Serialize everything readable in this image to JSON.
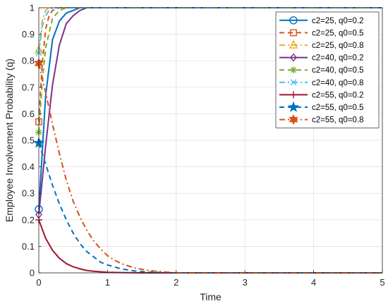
{
  "chart_data": {
    "type": "line",
    "title": "",
    "xlabel": "Time",
    "ylabel": "Employee Involvement Probability (q)",
    "xlim": [
      0,
      5
    ],
    "ylim": [
      0,
      1
    ],
    "xticks": [
      0,
      1,
      2,
      3,
      4,
      5
    ],
    "yticks": [
      0,
      0.1,
      0.2,
      0.3,
      0.4,
      0.5,
      0.6,
      0.7,
      0.8,
      0.9,
      1
    ],
    "grid": true,
    "legend_position": "top-right",
    "series": [
      {
        "name": "c2=25, q0=0.2",
        "color": "#0072BD",
        "dash": "solid",
        "marker": "circle",
        "x": [
          0,
          0.1,
          0.2,
          0.3,
          0.4,
          0.5,
          0.6,
          0.7,
          0.8,
          5
        ],
        "y": [
          0.24,
          0.67,
          0.88,
          0.95,
          0.98,
          0.99,
          1.0,
          1.0,
          1.0,
          1.0
        ]
      },
      {
        "name": "c2=25, q0=0.5",
        "color": "#D95319",
        "dash": "dashed",
        "marker": "square",
        "x": [
          0,
          0.05,
          0.1,
          0.15,
          0.2,
          0.3,
          0.4,
          5
        ],
        "y": [
          0.57,
          0.79,
          0.92,
          0.97,
          0.99,
          1.0,
          1.0,
          1.0
        ]
      },
      {
        "name": "c2=25, q0=0.8",
        "color": "#EDB120",
        "dash": "dashdot",
        "marker": "triangle",
        "x": [
          0,
          0.05,
          0.1,
          0.15,
          0.2,
          0.3,
          5
        ],
        "y": [
          0.84,
          0.95,
          0.99,
          1.0,
          1.0,
          1.0,
          1.0
        ]
      },
      {
        "name": "c2=40, q0=0.2",
        "color": "#7E2F8E",
        "dash": "solid",
        "marker": "diamond",
        "x": [
          0,
          0.1,
          0.2,
          0.3,
          0.4,
          0.5,
          0.6,
          0.7,
          0.8,
          0.9,
          1.0,
          5
        ],
        "y": [
          0.22,
          0.48,
          0.71,
          0.86,
          0.94,
          0.97,
          0.99,
          1.0,
          1.0,
          1.0,
          1.0,
          1.0
        ]
      },
      {
        "name": "c2=40, q0=0.5",
        "color": "#77AC30",
        "dash": "dashed",
        "marker": "asterisk",
        "x": [
          0,
          0.05,
          0.1,
          0.2,
          0.3,
          0.4,
          0.5,
          5
        ],
        "y": [
          0.53,
          0.72,
          0.85,
          0.96,
          0.99,
          1.0,
          1.0,
          1.0
        ]
      },
      {
        "name": "c2=40, q0=0.8",
        "color": "#4DBEEE",
        "dash": "dashdot",
        "marker": "x",
        "x": [
          0,
          0.05,
          0.1,
          0.15,
          0.2,
          0.3,
          5
        ],
        "y": [
          0.83,
          0.93,
          0.97,
          0.99,
          1.0,
          1.0,
          1.0
        ]
      },
      {
        "name": "c2=55, q0=0.2",
        "color": "#A2142F",
        "dash": "solid",
        "marker": "plus",
        "x": [
          0,
          0.1,
          0.2,
          0.3,
          0.4,
          0.5,
          0.6,
          0.7,
          0.8,
          0.9,
          1.0,
          1.2,
          1.5,
          2.0,
          5
        ],
        "y": [
          0.2,
          0.13,
          0.085,
          0.055,
          0.035,
          0.023,
          0.015,
          0.009,
          0.006,
          0.004,
          0.002,
          0.001,
          0.0,
          0.0,
          0.0
        ]
      },
      {
        "name": "c2=55, q0=0.5",
        "color": "#0072BD",
        "dash": "dashed",
        "marker": "pentagram",
        "x": [
          0,
          0.1,
          0.2,
          0.3,
          0.4,
          0.5,
          0.6,
          0.7,
          0.8,
          0.9,
          1.0,
          1.2,
          1.4,
          1.6,
          2.0,
          5
        ],
        "y": [
          0.49,
          0.41,
          0.33,
          0.26,
          0.2,
          0.15,
          0.11,
          0.08,
          0.06,
          0.04,
          0.03,
          0.015,
          0.007,
          0.003,
          0.0,
          0.0
        ]
      },
      {
        "name": "c2=55, q0=0.8",
        "color": "#D95319",
        "dash": "dashdot",
        "marker": "hexagram",
        "x": [
          0,
          0.1,
          0.2,
          0.3,
          0.4,
          0.5,
          0.6,
          0.7,
          0.8,
          0.9,
          1.0,
          1.1,
          1.2,
          1.4,
          1.6,
          1.8,
          2.0,
          5
        ],
        "y": [
          0.79,
          0.68,
          0.56,
          0.45,
          0.35,
          0.27,
          0.21,
          0.16,
          0.12,
          0.09,
          0.065,
          0.048,
          0.035,
          0.018,
          0.009,
          0.004,
          0.0,
          0.0
        ]
      }
    ]
  }
}
